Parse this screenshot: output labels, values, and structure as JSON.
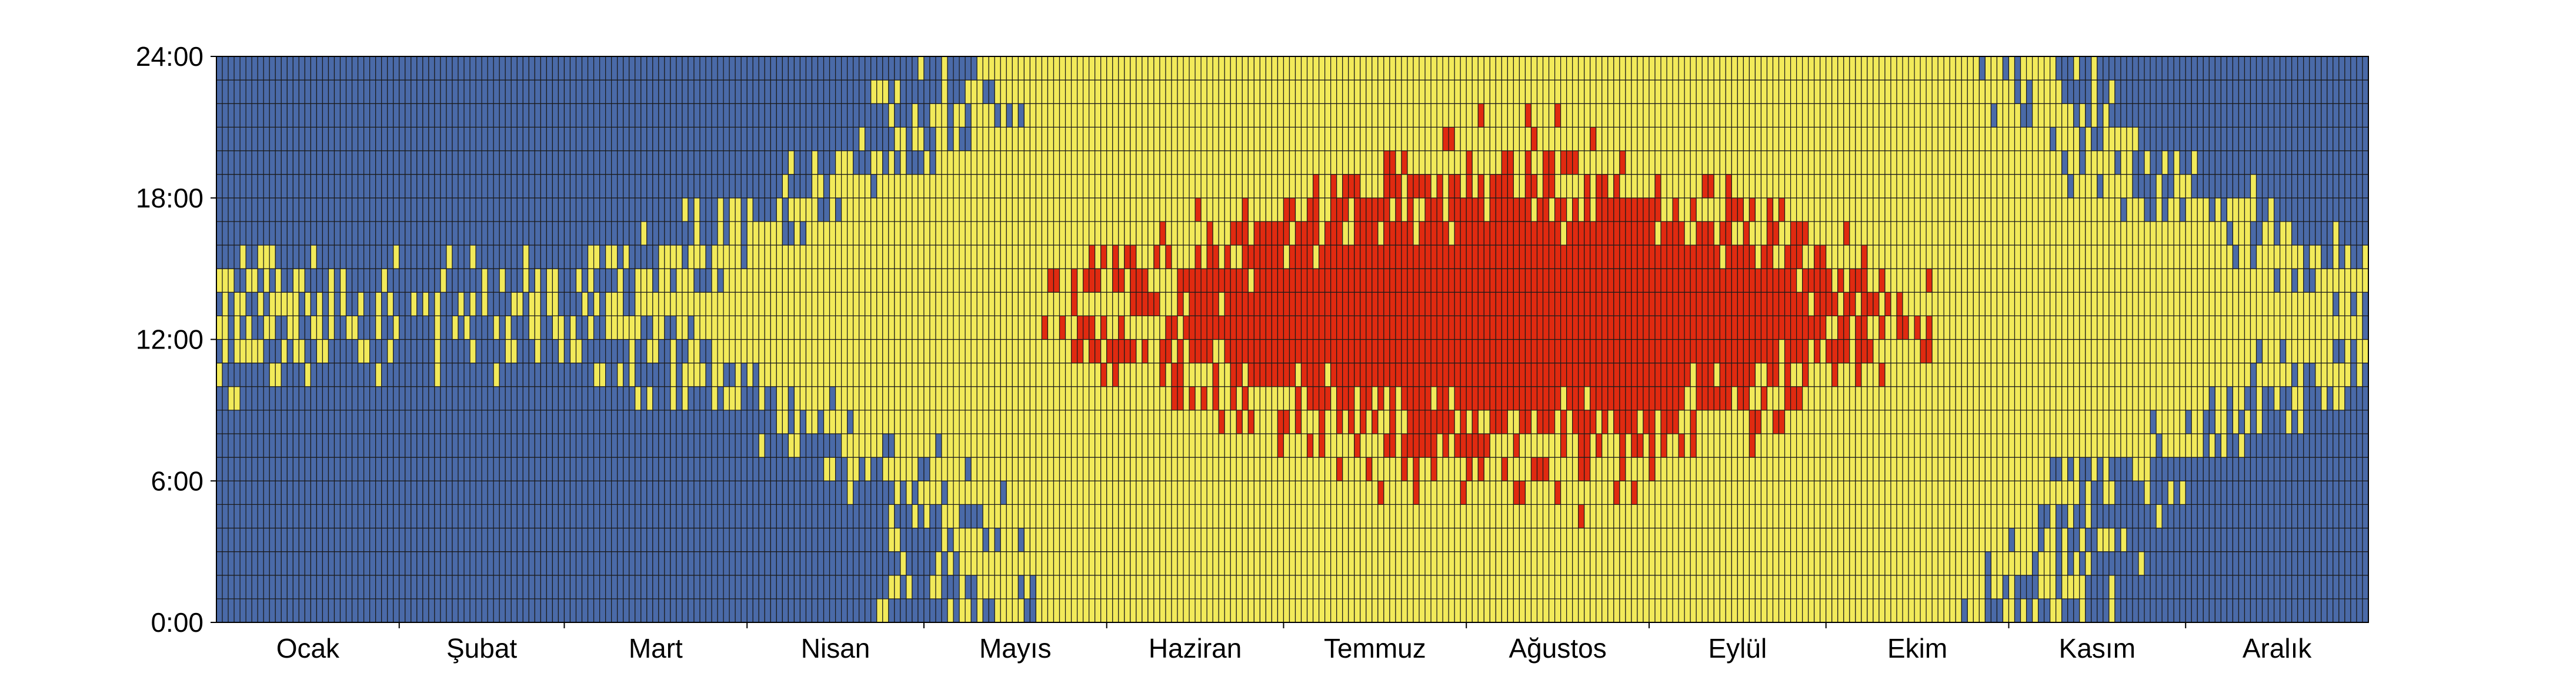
{
  "chart_data": {
    "type": "heatmap",
    "title": "",
    "xlabel": "",
    "ylabel": "",
    "x_months": [
      "Ocak",
      "Şubat",
      "Mart",
      "Nisan",
      "Mayıs",
      "Haziran",
      "Temmuz",
      "Ağustos",
      "Eylül",
      "Ekim",
      "Kasım",
      "Aralık"
    ],
    "days_per_month": [
      31,
      28,
      31,
      30,
      31,
      30,
      31,
      31,
      30,
      31,
      30,
      31
    ],
    "y_ticks": [
      "0:00",
      "6:00",
      "12:00",
      "18:00",
      "24:00"
    ],
    "y_tick_hours": [
      0,
      6,
      12,
      18,
      24
    ],
    "ylim": [
      0,
      24
    ],
    "hours_per_day": 24,
    "colors": {
      "cold": "#4a6aa8",
      "comfortable": "#f2ea5a",
      "hot": "#e02a10",
      "gridline": "#1a1a1a",
      "axis": "#000000"
    },
    "month_estimates": {
      "Ocak": {
        "yellow_hours": [
          12,
          14
        ],
        "yellow_share": 0.35
      },
      "Şubat": {
        "yellow_hours": [
          11,
          15
        ],
        "yellow_share": 0.55
      },
      "Mart": {
        "yellow_hours": [
          10,
          17
        ],
        "yellow_share": 0.7
      },
      "Nisan": {
        "yellow_hours": [
          9,
          19
        ],
        "yellow_share": 0.85
      },
      "Mayıs": {
        "yellow_hours": [
          5,
          22
        ],
        "red_hours": [
          13,
          14
        ],
        "red_share": 0.15
      },
      "Haziran": {
        "yellow_hours": [
          0,
          24
        ],
        "red_hours": [
          9,
          15
        ],
        "red_share": 0.5
      },
      "Temmuz": {
        "yellow_hours": [
          0,
          24
        ],
        "red_hours": [
          9,
          16
        ],
        "red_share": 0.85
      },
      "Ağustos": {
        "yellow_hours": [
          0,
          24
        ],
        "red_hours": [
          9,
          16
        ],
        "red_share": 0.9
      },
      "Eylül": {
        "yellow_hours": [
          0,
          24
        ],
        "red_hours": [
          10,
          14
        ],
        "red_share": 0.55
      },
      "Ekim": {
        "yellow_hours": [
          0,
          24
        ],
        "red_hours": [
          11,
          14
        ],
        "red_share": 0.25
      },
      "Kasım": {
        "yellow_hours": [
          5,
          20
        ],
        "yellow_share": 0.45
      },
      "Aralık": {
        "yellow_hours": [
          11,
          15
        ],
        "yellow_share": 0.35
      }
    }
  }
}
